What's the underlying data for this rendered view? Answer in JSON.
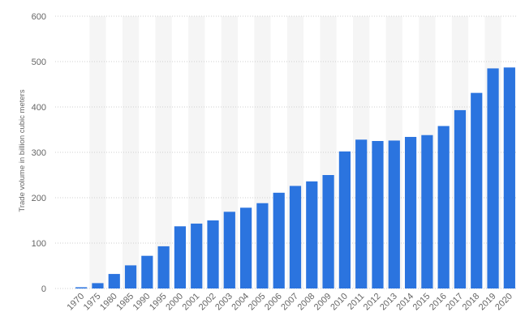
{
  "chart_data": {
    "type": "bar",
    "ylabel": "Trade volume in billion cubic meters",
    "xlabel": "",
    "ylim": [
      0,
      600
    ],
    "yticks": [
      0,
      100,
      200,
      300,
      400,
      500,
      600
    ],
    "grid": true,
    "categories": [
      "1970",
      "1975",
      "1980",
      "1985",
      "1990",
      "1995",
      "2000",
      "2001",
      "2002",
      "2003",
      "2004",
      "2005",
      "2006",
      "2007",
      "2008",
      "2009",
      "2010",
      "2011",
      "2012",
      "2013",
      "2014",
      "2015",
      "2016",
      "2017",
      "2018",
      "2019",
      "2020"
    ],
    "values": [
      2.7,
      11.8,
      32,
      51,
      72,
      93,
      137,
      143,
      150,
      169,
      178,
      188,
      211,
      226,
      236,
      250,
      302,
      328,
      325,
      326,
      334,
      338,
      358,
      393,
      431,
      485,
      487
    ],
    "colors": {
      "bar": "#2b74df",
      "grid": "#cfcfcf",
      "band": "#f5f5f5",
      "axis_text": "#666666"
    }
  }
}
